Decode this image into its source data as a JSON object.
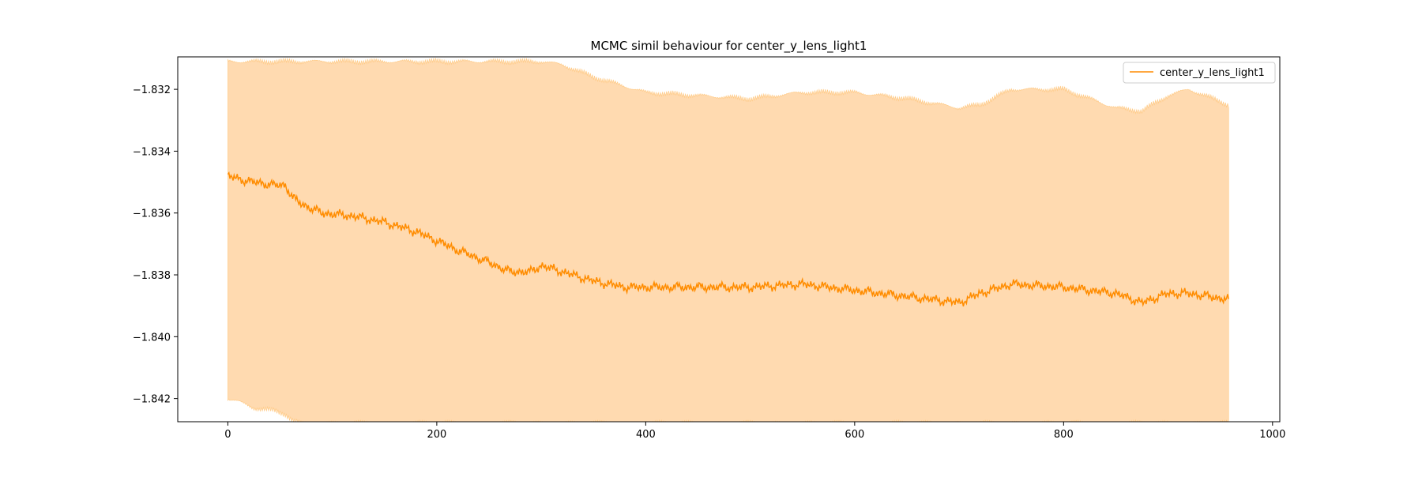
{
  "chart_data": {
    "type": "line",
    "title": "MCMC simil behaviour for center_y_lens_light1",
    "xlabel": "",
    "ylabel": "",
    "xlim": [
      -47.95,
      1006.95
    ],
    "ylim": [
      -1.84275,
      -1.83095
    ],
    "x_ticks": [
      0,
      200,
      400,
      600,
      800,
      1000
    ],
    "x_tick_labels": [
      "0",
      "200",
      "400",
      "600",
      "800",
      "1000"
    ],
    "y_ticks": [
      -1.842,
      -1.84,
      -1.838,
      -1.836,
      -1.834,
      -1.832
    ],
    "y_tick_labels": [
      "−1.842",
      "−1.840",
      "−1.838",
      "−1.836",
      "−1.834",
      "−1.832"
    ],
    "grid": false,
    "legend": {
      "position": "top-right",
      "entries": [
        "center_y_lens_light1"
      ]
    },
    "colors": {
      "line": "#ff8c00",
      "band": "#ffdab0",
      "band_edge": "#ffc880"
    },
    "n_points": 959,
    "series": [
      {
        "name": "center_y_lens_light1",
        "anchors_x": [
          0,
          10,
          25,
          45,
          55,
          62,
          70,
          90,
          120,
          150,
          180,
          200,
          220,
          250,
          270,
          290,
          300,
          320,
          350,
          380,
          400,
          450,
          500,
          550,
          600,
          650,
          700,
          720,
          750,
          800,
          850,
          875,
          900,
          920,
          958
        ],
        "mean": [
          -1.8348,
          -1.8349,
          -1.835,
          -1.8351,
          -1.8351,
          -1.8355,
          -1.8357,
          -1.836,
          -1.8361,
          -1.8363,
          -1.8366,
          -1.8369,
          -1.8372,
          -1.8376,
          -1.8379,
          -1.8379,
          -1.8377,
          -1.8379,
          -1.8382,
          -1.8384,
          -1.8384,
          -1.8384,
          -1.8384,
          -1.8383,
          -1.8385,
          -1.8387,
          -1.8389,
          -1.8386,
          -1.8383,
          -1.8384,
          -1.8386,
          -1.8389,
          -1.8386,
          -1.8386,
          -1.8388
        ],
        "upper": [
          -1.8311,
          -1.8311,
          -1.8311,
          -1.8311,
          -1.8311,
          -1.8311,
          -1.8311,
          -1.8311,
          -1.8311,
          -1.8311,
          -1.8311,
          -1.8311,
          -1.8311,
          -1.8311,
          -1.8311,
          -1.8311,
          -1.8311,
          -1.8312,
          -1.8316,
          -1.8319,
          -1.8321,
          -1.8322,
          -1.8323,
          -1.8321,
          -1.8321,
          -1.8323,
          -1.8326,
          -1.8325,
          -1.832,
          -1.832,
          -1.8326,
          -1.8327,
          -1.8322,
          -1.832,
          -1.8325
        ],
        "lower": [
          -1.842,
          -1.8421,
          -1.8423,
          -1.8424,
          -1.8425,
          -1.8427,
          -1.8428,
          -1.8428,
          -1.8428,
          -1.8428,
          -1.8428,
          -1.8428,
          -1.8428,
          -1.8428,
          -1.8428,
          -1.8428,
          -1.8428,
          -1.8428,
          -1.8428,
          -1.8428,
          -1.8428,
          -1.8428,
          -1.8428,
          -1.8428,
          -1.8428,
          -1.8428,
          -1.8428,
          -1.8428,
          -1.8428,
          -1.8428,
          -1.8428,
          -1.8428,
          -1.8428,
          -1.8428,
          -1.8428
        ]
      }
    ]
  }
}
